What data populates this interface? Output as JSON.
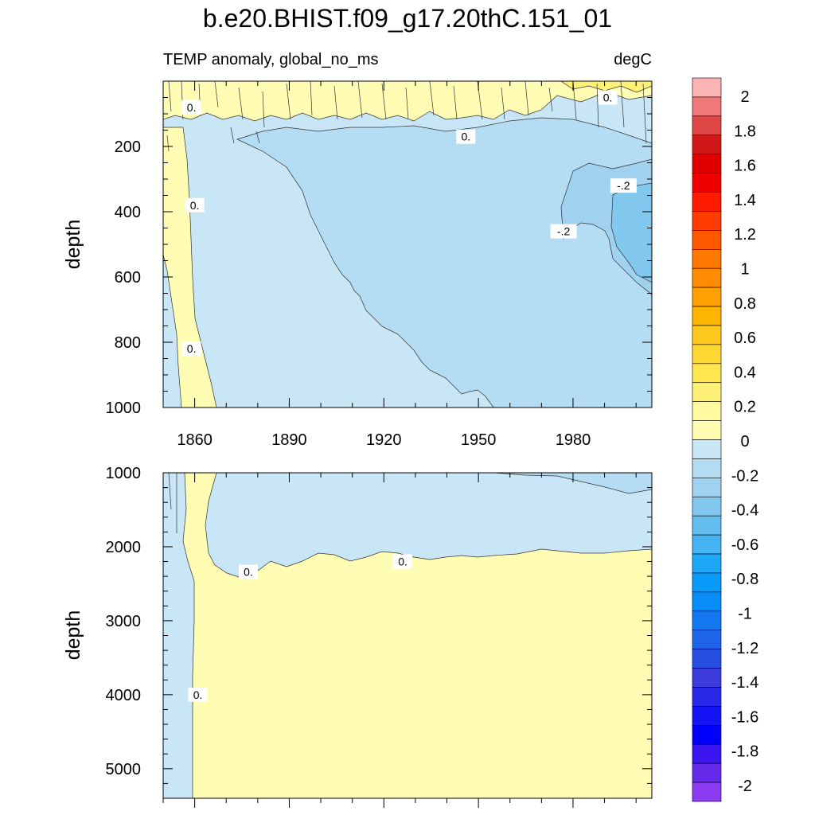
{
  "chart_data": {
    "title": "b.e20.BHIST.f09_g17.20thC.151_01",
    "type": "heatmap",
    "colorbar": {
      "levels": [
        "2",
        "1.8",
        "1.6",
        "1.4",
        "1.2",
        "1",
        "0.8",
        "0.6",
        "0.4",
        "0.2",
        "0",
        "-0.2",
        "-0.4",
        "-0.6",
        "-0.8",
        "-1",
        "-1.2",
        "-1.4",
        "-1.6",
        "-1.8",
        "-2"
      ],
      "colors": [
        "#fbb4b4",
        "#f07878",
        "#e04848",
        "#d01818",
        "#e00000",
        "#f00000",
        "#ff1a00",
        "#ff3c00",
        "#ff5a00",
        "#ff7800",
        "#ff8c00",
        "#ffa000",
        "#ffb400",
        "#ffc81e",
        "#ffd732",
        "#ffe650",
        "#fff078",
        "#fffaa0",
        "#fffcb4",
        "#c8e6f5",
        "#b4dcf2",
        "#a0d2f0",
        "#82c8ee",
        "#64bef0",
        "#46b4f4",
        "#1ea8f8",
        "#0a9af8",
        "#0a8cf8",
        "#1478f0",
        "#1e64e8",
        "#2850e0",
        "#3c3cdc",
        "#2828e8",
        "#1414f4",
        "#0000ff",
        "#3c14f0",
        "#6428e8",
        "#8c3cf0"
      ]
    },
    "top_panel": {
      "subtitle_left": "TEMP anomaly, global_no_ms",
      "subtitle_right": "degC",
      "ylabel": "depth",
      "ylim": [
        0,
        1000
      ],
      "yticks": [
        "200",
        "400",
        "600",
        "800",
        "1000"
      ],
      "xticks": [
        "1860",
        "1890",
        "1920",
        "1950",
        "1980"
      ],
      "contour_labels": [
        {
          "text": "0.",
          "year": 1859,
          "depth": 80
        },
        {
          "text": "0.",
          "year": 1860,
          "depth": 380
        },
        {
          "text": "0.",
          "year": 1859,
          "depth": 820
        },
        {
          "text": "0.",
          "year": 1946,
          "depth": 170
        },
        {
          "text": "0.",
          "year": 1991,
          "depth": 50
        },
        {
          "text": "-.2",
          "year": 1977,
          "depth": 460
        },
        {
          "text": "-.2",
          "year": 1996,
          "depth": 320
        }
      ]
    },
    "bottom_panel": {
      "ylabel": "depth",
      "ylim": [
        1000,
        5400
      ],
      "yticks": [
        "1000",
        "2000",
        "3000",
        "4000",
        "5000"
      ],
      "contour_labels": [
        {
          "text": "0.",
          "year": 1877,
          "depth": 2340
        },
        {
          "text": "0.",
          "year": 1926,
          "depth": 2200
        },
        {
          "text": "0.",
          "year": 1861,
          "depth": 4000
        }
      ]
    }
  }
}
